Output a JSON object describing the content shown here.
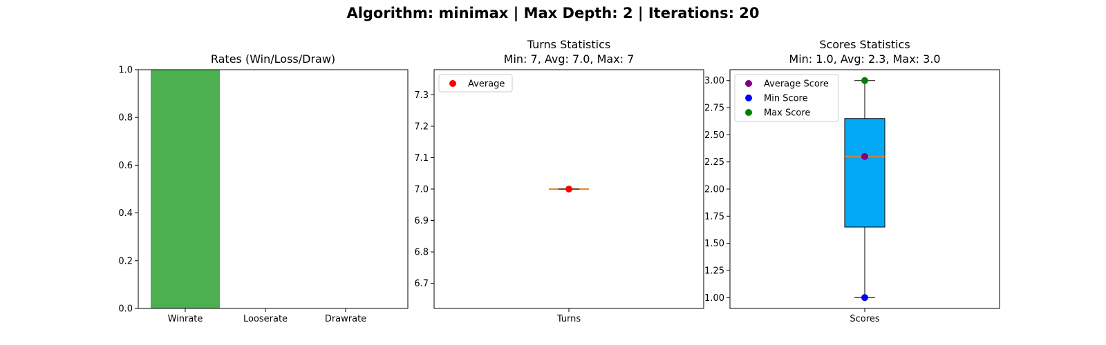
{
  "figure": {
    "suptitle": "Algorithm: minimax | Max Depth: 2 | Iterations: 20"
  },
  "chart_data": [
    {
      "type": "bar",
      "title": "Rates (Win/Loss/Draw)",
      "categories": [
        "Winrate",
        "Looserate",
        "Drawrate"
      ],
      "values": [
        1.0,
        0.0,
        0.0
      ],
      "colors": [
        "#4caf50",
        "#f44336",
        "#ffc107"
      ],
      "ylim": [
        0,
        1
      ],
      "yticks": [
        "0.0",
        "0.2",
        "0.4",
        "0.6",
        "0.8",
        "1.0"
      ],
      "xlabel": "",
      "ylabel": "",
      "grid": false
    },
    {
      "type": "box",
      "title_lines": [
        "Turns Statistics",
        "Min: 7, Avg: 7.0, Max: 7"
      ],
      "categories": [
        "Turns"
      ],
      "box": {
        "min": 7,
        "q1": 7,
        "median": 7,
        "q3": 7,
        "max": 7
      },
      "points": [
        {
          "name": "Average",
          "value": 7.0,
          "color": "#ff0000"
        }
      ],
      "ylim": [
        6.62,
        7.38
      ],
      "yticks": [
        "6.7",
        "6.8",
        "6.9",
        "7.0",
        "7.1",
        "7.2",
        "7.3"
      ],
      "legend": {
        "position": "top-left",
        "entries": [
          "Average"
        ]
      },
      "grid": false
    },
    {
      "type": "box",
      "title_lines": [
        "Scores Statistics",
        "Min: 1.0, Avg: 2.3, Max: 3.0"
      ],
      "categories": [
        "Scores"
      ],
      "box": {
        "min": 1.0,
        "q1": 1.65,
        "median": 2.3,
        "q3": 2.65,
        "max": 3.0,
        "fill": "#03a9f4",
        "median_color": "#e8832a"
      },
      "points": [
        {
          "name": "Average Score",
          "value": 2.3,
          "color": "#800080"
        },
        {
          "name": "Min Score",
          "value": 1.0,
          "color": "#0000ff"
        },
        {
          "name": "Max Score",
          "value": 3.0,
          "color": "#008000"
        }
      ],
      "ylim": [
        0.9,
        3.1
      ],
      "yticks": [
        "1.00",
        "1.25",
        "1.50",
        "1.75",
        "2.00",
        "2.25",
        "2.50",
        "2.75",
        "3.00"
      ],
      "legend": {
        "position": "top-left",
        "entries": [
          "Average Score",
          "Min Score",
          "Max Score"
        ]
      },
      "grid": false
    }
  ]
}
